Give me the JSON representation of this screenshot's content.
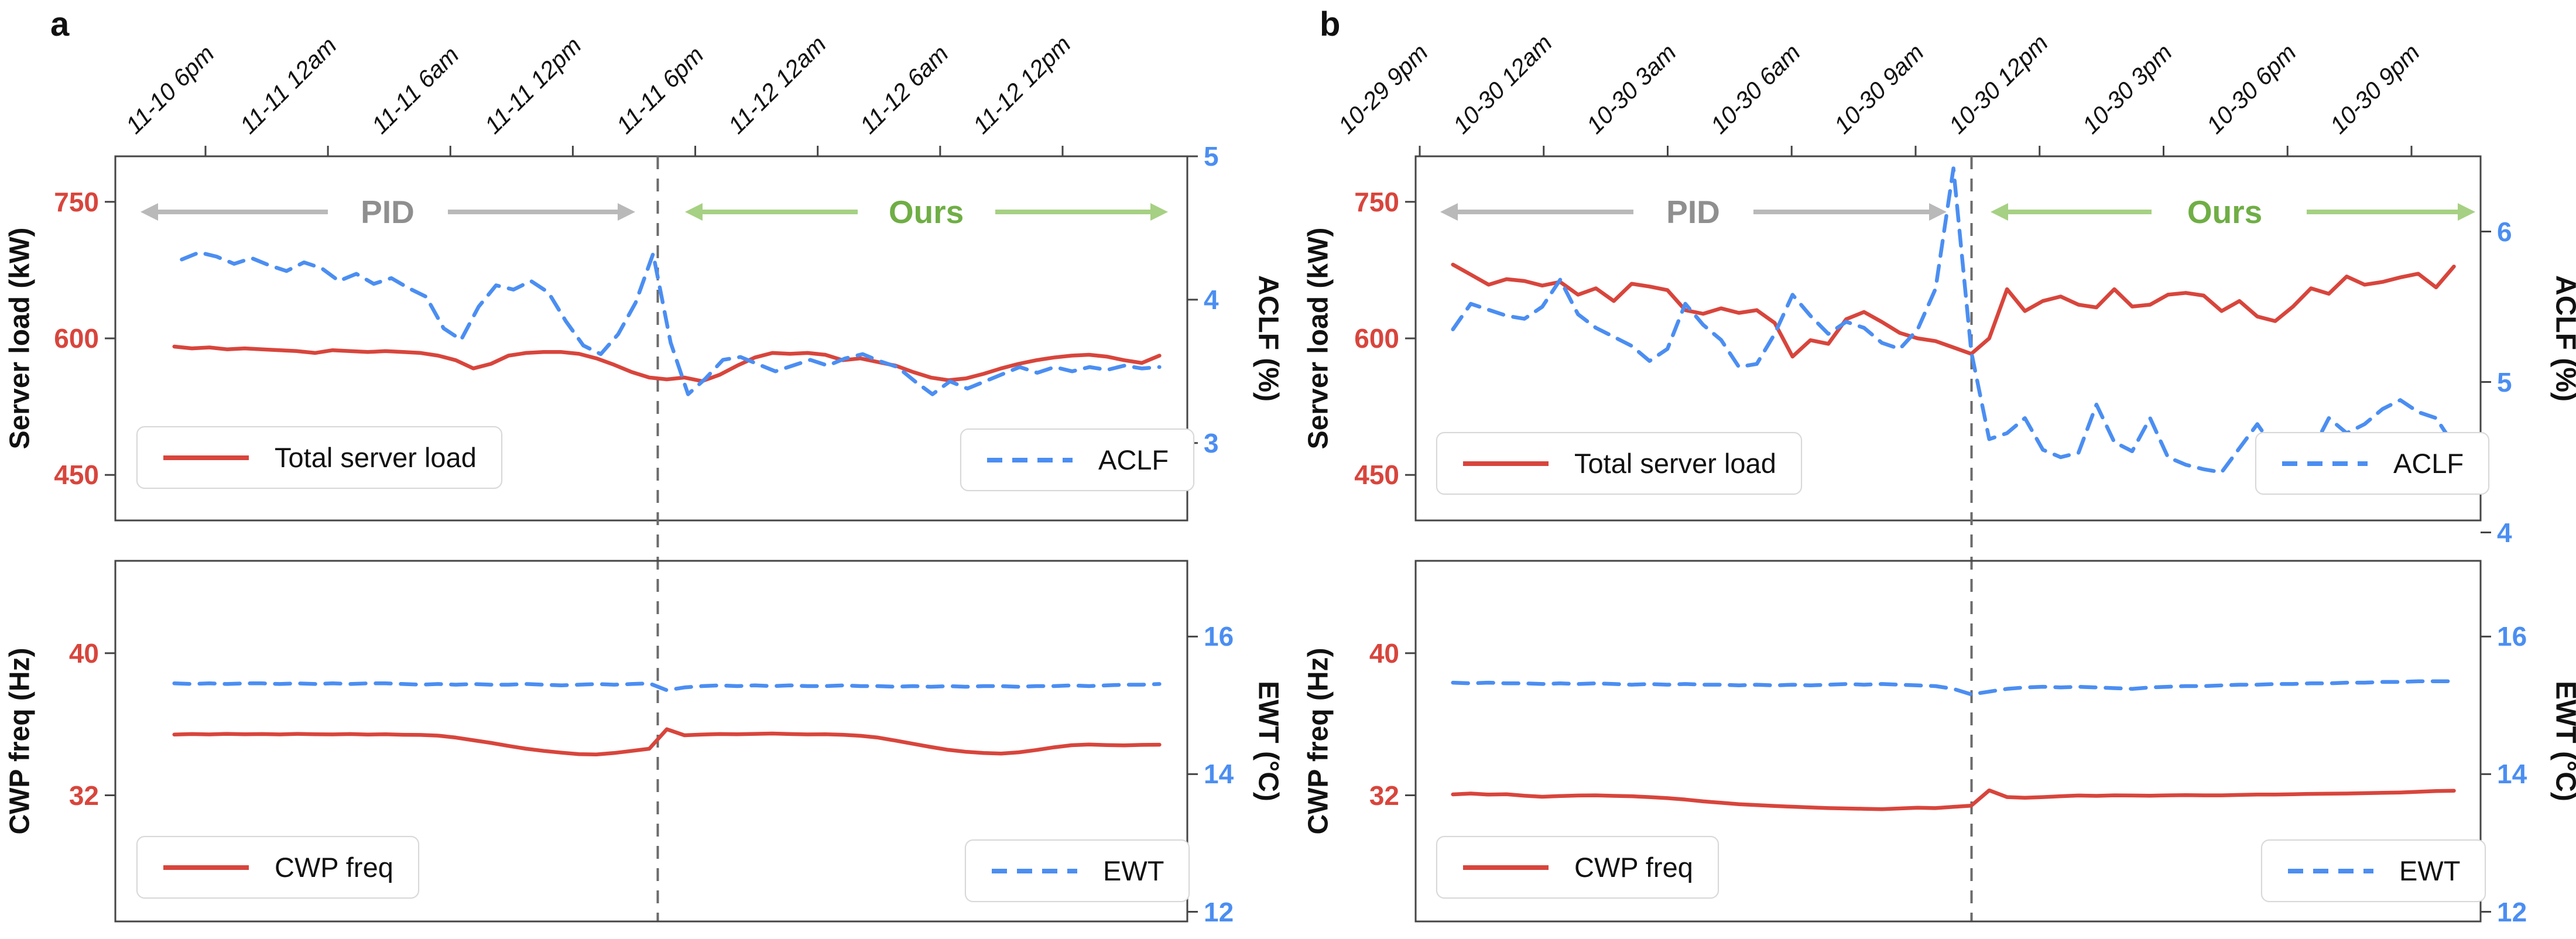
{
  "figure": {
    "panel_a_label": "a",
    "panel_b_label": "b"
  },
  "colors": {
    "red": "#d8453c",
    "blue": "#4b8ef2",
    "spine": "#454545",
    "gray_text": "#8f8f8f",
    "gray_arrow": "#b9b9b9",
    "green_text": "#6fae45",
    "green_arrow": "#a6d083",
    "switch_dash": "#6b6b6b"
  },
  "chart_data": [
    {
      "id": "a-top",
      "panel": "a",
      "row": "top",
      "type": "line",
      "x_ticklabels": [
        "11-10 6pm",
        "11-11 12am",
        "11-11 6am",
        "11-11 12pm",
        "11-11 6pm",
        "11-12 12am",
        "11-12 6am",
        "11-12 12pm"
      ],
      "left_axis": {
        "label": "Server load (kW)",
        "ticks": [
          750,
          600,
          450
        ],
        "ylim": [
          400,
          800
        ],
        "color": "red"
      },
      "right_axis": {
        "label": "ACLF (%)",
        "ticks": [
          5,
          4,
          3
        ],
        "ylim": [
          2.46,
          5.0
        ],
        "color": "blue"
      },
      "switch_frac": 0.506,
      "annotations": {
        "pid": "PID",
        "ours": "Ours"
      },
      "legends": [
        {
          "label": "Total server load",
          "color": "red",
          "dashed": false,
          "pos": "lower-left"
        },
        {
          "label": "ACLF",
          "color": "blue",
          "dashed": true,
          "pos": "lower-right"
        }
      ],
      "series": [
        {
          "name": "Total server load",
          "axis": "left",
          "color": "red",
          "dashed": false,
          "x0": 0.055,
          "x1": 0.974,
          "values": [
            591,
            589,
            590,
            588,
            589,
            588,
            587,
            586,
            584,
            587,
            586,
            585,
            586,
            585,
            584,
            581,
            576,
            567,
            572,
            581,
            584,
            585,
            585,
            583,
            578,
            571,
            563,
            557,
            555,
            557,
            553,
            560,
            570,
            579,
            584,
            583,
            584,
            582,
            576,
            578,
            574,
            570,
            563,
            557,
            554,
            556,
            561,
            567,
            572,
            576,
            579,
            581,
            582,
            580,
            576,
            573,
            581
          ]
        },
        {
          "name": "ACLF",
          "axis": "right",
          "color": "blue",
          "dashed": true,
          "x0": 0.062,
          "x1": 0.974,
          "values": [
            4.28,
            4.33,
            4.3,
            4.25,
            4.29,
            4.24,
            4.2,
            4.26,
            4.22,
            4.13,
            4.18,
            4.11,
            4.15,
            4.08,
            4.02,
            3.8,
            3.72,
            3.95,
            4.1,
            4.07,
            4.13,
            4.05,
            3.85,
            3.68,
            3.62,
            3.76,
            3.98,
            4.32,
            3.7,
            3.34,
            3.45,
            3.58,
            3.6,
            3.55,
            3.5,
            3.54,
            3.58,
            3.54,
            3.59,
            3.62,
            3.57,
            3.53,
            3.43,
            3.34,
            3.43,
            3.38,
            3.43,
            3.48,
            3.53,
            3.49,
            3.53,
            3.5,
            3.53,
            3.51,
            3.54,
            3.52,
            3.53
          ]
        }
      ]
    },
    {
      "id": "a-bottom",
      "panel": "a",
      "row": "bottom",
      "type": "line",
      "left_axis": {
        "label": "CWP freq (Hz)",
        "ticks": [
          40,
          32
        ],
        "ylim": [
          24.9,
          45.2
        ],
        "color": "red"
      },
      "right_axis": {
        "label": "EWT (°C)",
        "ticks": [
          16,
          14,
          12
        ],
        "ylim": [
          11.86,
          17.1
        ],
        "color": "blue"
      },
      "legends": [
        {
          "label": "CWP freq",
          "color": "red",
          "dashed": false,
          "pos": "lower-left"
        },
        {
          "label": "EWT",
          "color": "blue",
          "dashed": true,
          "pos": "lower-right"
        }
      ],
      "series": [
        {
          "name": "CWP freq",
          "axis": "left",
          "color": "red",
          "dashed": false,
          "x0": 0.055,
          "x1": 0.974,
          "values": [
            35.42,
            35.45,
            35.43,
            35.46,
            35.44,
            35.45,
            35.43,
            35.46,
            35.44,
            35.43,
            35.45,
            35.42,
            35.44,
            35.41,
            35.4,
            35.36,
            35.25,
            35.1,
            34.95,
            34.78,
            34.62,
            34.5,
            34.4,
            34.32,
            34.3,
            34.38,
            34.5,
            34.62,
            35.72,
            35.38,
            35.42,
            35.45,
            35.44,
            35.46,
            35.48,
            35.45,
            35.43,
            35.44,
            35.41,
            35.35,
            35.25,
            35.08,
            34.9,
            34.72,
            34.56,
            34.45,
            34.38,
            34.35,
            34.42,
            34.55,
            34.7,
            34.82,
            34.86,
            34.83,
            34.81,
            34.84,
            34.85
          ]
        },
        {
          "name": "EWT",
          "axis": "right",
          "color": "blue",
          "dashed": true,
          "x0": 0.055,
          "x1": 0.974,
          "values": [
            15.32,
            15.31,
            15.32,
            15.31,
            15.32,
            15.32,
            15.31,
            15.32,
            15.31,
            15.32,
            15.31,
            15.32,
            15.32,
            15.31,
            15.3,
            15.31,
            15.3,
            15.31,
            15.3,
            15.3,
            15.31,
            15.3,
            15.29,
            15.3,
            15.31,
            15.3,
            15.31,
            15.32,
            15.22,
            15.26,
            15.28,
            15.29,
            15.28,
            15.29,
            15.28,
            15.29,
            15.28,
            15.28,
            15.29,
            15.28,
            15.28,
            15.27,
            15.28,
            15.27,
            15.28,
            15.27,
            15.28,
            15.28,
            15.27,
            15.28,
            15.28,
            15.29,
            15.28,
            15.29,
            15.3,
            15.3,
            15.31
          ]
        }
      ]
    },
    {
      "id": "b-top",
      "panel": "b",
      "row": "top",
      "type": "line",
      "x_ticklabels": [
        "10-29 9pm",
        "10-30 12am",
        "10-30 3am",
        "10-30 6am",
        "10-30 9am",
        "10-30 12pm",
        "10-30 3pm",
        "10-30 6pm",
        "10-30 9pm"
      ],
      "left_axis": {
        "label": "Server load (kW)",
        "ticks": [
          750,
          600,
          450
        ],
        "ylim": [
          400,
          800
        ],
        "color": "red"
      },
      "right_axis": {
        "label": "ACLF (%)",
        "ticks": [
          6,
          5,
          4
        ],
        "ylim": [
          4.08,
          6.5
        ],
        "color": "blue"
      },
      "switch_frac": 0.522,
      "annotations": {
        "pid": "PID",
        "ours": "Ours"
      },
      "legends": [
        {
          "label": "Total server load",
          "color": "red",
          "dashed": false,
          "pos": "lower-left"
        },
        {
          "label": "ACLF",
          "color": "blue",
          "dashed": true,
          "pos": "lower-right"
        }
      ],
      "series": [
        {
          "name": "Total server load",
          "axis": "left",
          "color": "red",
          "dashed": false,
          "x0": 0.035,
          "x1": 0.975,
          "values": [
            681,
            670,
            659,
            665,
            663,
            658,
            662,
            648,
            655,
            641,
            660,
            657,
            653,
            631,
            627,
            633,
            628,
            631,
            617,
            580,
            598,
            594,
            621,
            629,
            618,
            606,
            600,
            597,
            590,
            583,
            600,
            654,
            630,
            641,
            646,
            637,
            634,
            654,
            635,
            637,
            648,
            650,
            647,
            630,
            641,
            624,
            619,
            635,
            655,
            649,
            668,
            659,
            662,
            667,
            671,
            656,
            679
          ]
        },
        {
          "name": "ACLF",
          "axis": "right",
          "color": "blue",
          "dashed": true,
          "x0": 0.035,
          "x1": 0.975,
          "values": [
            5.35,
            5.52,
            5.48,
            5.44,
            5.42,
            5.5,
            5.68,
            5.45,
            5.36,
            5.3,
            5.24,
            5.14,
            5.22,
            5.52,
            5.38,
            5.28,
            5.1,
            5.12,
            5.32,
            5.58,
            5.44,
            5.32,
            5.4,
            5.36,
            5.26,
            5.22,
            5.35,
            5.62,
            6.42,
            5.2,
            4.62,
            4.66,
            4.76,
            4.55,
            4.5,
            4.53,
            4.85,
            4.6,
            4.54,
            4.76,
            4.5,
            4.45,
            4.42,
            4.4,
            4.56,
            4.72,
            4.55,
            4.5,
            4.53,
            4.76,
            4.66,
            4.72,
            4.82,
            4.88,
            4.8,
            4.76,
            4.58
          ]
        }
      ]
    },
    {
      "id": "b-bottom",
      "panel": "b",
      "row": "bottom",
      "type": "line",
      "left_axis": {
        "label": "CWP freq (Hz)",
        "ticks": [
          40,
          32
        ],
        "ylim": [
          24.9,
          45.2
        ],
        "color": "red"
      },
      "right_axis": {
        "label": "EWT (°C)",
        "ticks": [
          16,
          14,
          12
        ],
        "ylim": [
          11.86,
          17.1
        ],
        "color": "blue"
      },
      "legends": [
        {
          "label": "CWP freq",
          "color": "red",
          "dashed": false,
          "pos": "lower-left"
        },
        {
          "label": "EWT",
          "color": "blue",
          "dashed": true,
          "pos": "lower-right"
        }
      ],
      "series": [
        {
          "name": "CWP freq",
          "axis": "left",
          "color": "red",
          "dashed": false,
          "x0": 0.035,
          "x1": 0.975,
          "values": [
            32.05,
            32.1,
            32.04,
            32.06,
            31.98,
            31.92,
            31.96,
            31.99,
            32.0,
            31.97,
            31.95,
            31.9,
            31.84,
            31.76,
            31.66,
            31.58,
            31.5,
            31.45,
            31.4,
            31.36,
            31.32,
            31.28,
            31.26,
            31.24,
            31.22,
            31.26,
            31.3,
            31.28,
            31.35,
            31.42,
            32.28,
            31.9,
            31.86,
            31.9,
            31.95,
            31.99,
            31.97,
            32.0,
            31.99,
            31.98,
            32.0,
            32.01,
            32.0,
            32.0,
            32.02,
            32.04,
            32.04,
            32.06,
            32.08,
            32.09,
            32.1,
            32.12,
            32.14,
            32.16,
            32.2,
            32.24,
            32.26
          ]
        },
        {
          "name": "EWT",
          "axis": "right",
          "color": "blue",
          "dashed": true,
          "x0": 0.035,
          "x1": 0.975,
          "values": [
            15.33,
            15.32,
            15.33,
            15.32,
            15.32,
            15.31,
            15.32,
            15.31,
            15.32,
            15.31,
            15.3,
            15.31,
            15.3,
            15.31,
            15.3,
            15.3,
            15.29,
            15.3,
            15.29,
            15.3,
            15.29,
            15.3,
            15.31,
            15.3,
            15.31,
            15.3,
            15.29,
            15.28,
            15.24,
            15.16,
            15.2,
            15.24,
            15.26,
            15.27,
            15.26,
            15.27,
            15.26,
            15.25,
            15.24,
            15.26,
            15.27,
            15.28,
            15.28,
            15.29,
            15.3,
            15.3,
            15.31,
            15.31,
            15.32,
            15.32,
            15.33,
            15.33,
            15.34,
            15.34,
            15.35,
            15.35,
            15.35
          ]
        }
      ]
    }
  ]
}
